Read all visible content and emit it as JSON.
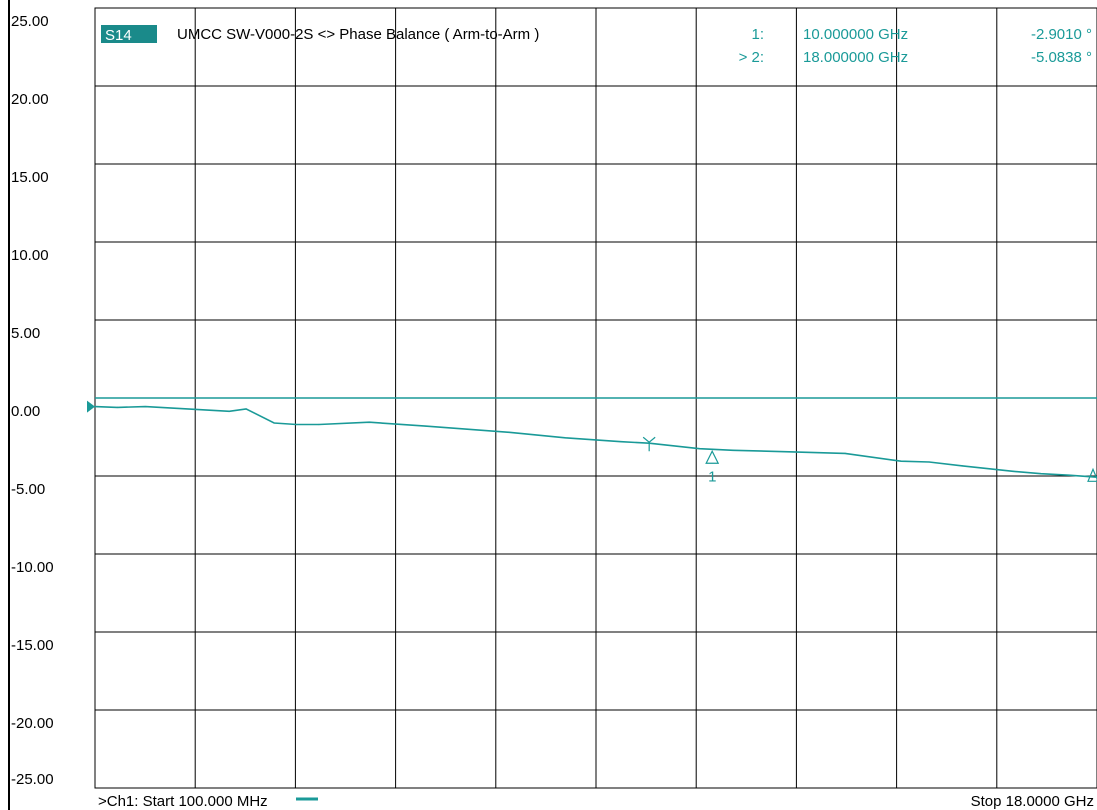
{
  "trace": {
    "id": "S14",
    "title": "UMCC   SW-V000-2S <> Phase Balance ( Arm-to-Arm )"
  },
  "markers": [
    {
      "label": "1:",
      "freq": "10.000000 GHz",
      "value": "-2.9010 °"
    },
    {
      "label": "> 2:",
      "freq": "18.000000 GHz",
      "value": "-5.0838 °"
    }
  ],
  "footer": {
    "start": ">Ch1: Start  100.000 MHz",
    "stop": "Stop  18.0000 GHz"
  },
  "marker_tags": {
    "m1": "1"
  },
  "colors": {
    "trace": "#1a9a98",
    "grid": "#000000",
    "badge_bg": "#1a8a8a",
    "background": "#ffffff"
  },
  "chart_data": {
    "type": "line",
    "ylim": [
      -25,
      25
    ],
    "xlim": [
      0.1,
      18.0
    ],
    "x_unit": "GHz",
    "y_unit": "deg",
    "y_ticks": [
      "25.00",
      "20.00",
      "15.00",
      "10.00",
      "5.00",
      "0.00",
      "-5.00",
      "-10.00",
      "-15.00",
      "-20.00",
      "-25.00"
    ],
    "reference_level": 0,
    "series": [
      {
        "x": [
          0.1,
          0.5,
          1.0,
          2.5,
          2.8,
          3.3,
          3.7,
          4.1,
          5.0,
          6.0,
          7.5,
          8.5,
          9.5,
          10.0,
          10.9,
          11.5,
          12.5,
          13.5,
          14.5,
          15.0,
          15.6,
          16.5,
          17.0,
          17.5,
          18.0
        ],
        "y": [
          -0.55,
          -0.6,
          -0.55,
          -0.85,
          -0.7,
          -1.6,
          -1.7,
          -1.7,
          -1.55,
          -1.8,
          -2.2,
          -2.55,
          -2.8,
          -2.9,
          -3.25,
          -3.35,
          -3.45,
          -3.55,
          -4.05,
          -4.1,
          -4.35,
          -4.7,
          -4.85,
          -4.95,
          -5.08
        ]
      }
    ],
    "markers": [
      {
        "name": "1",
        "x": 10.0,
        "y": -2.901
      },
      {
        "name": "2",
        "x": 18.0,
        "y": -5.0838
      }
    ]
  }
}
